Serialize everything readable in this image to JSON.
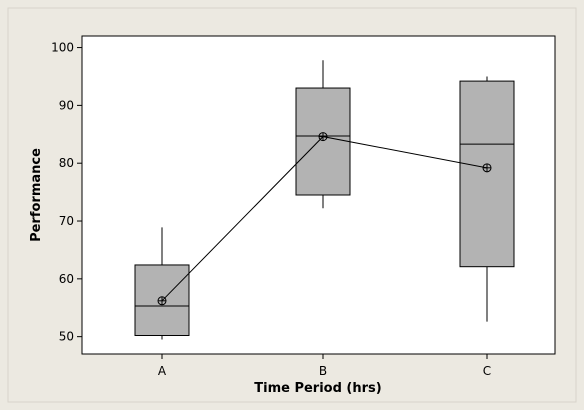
{
  "chart_data": {
    "type": "boxplot",
    "title": "",
    "xlabel": "Time Period (hrs)",
    "ylabel": "Performance",
    "categories": [
      "A",
      "B",
      "C"
    ],
    "ylim": [
      47,
      102
    ],
    "yticks": [
      50,
      60,
      70,
      80,
      90,
      100
    ],
    "grid": false,
    "legend": "none",
    "boxes": [
      {
        "name": "A",
        "whisker_low": 49.5,
        "q1": 50.2,
        "median": 55.3,
        "q3": 62.4,
        "whisker_high": 68.9,
        "mean": 56.2
      },
      {
        "name": "B",
        "whisker_low": 72.2,
        "q1": 74.5,
        "median": 84.7,
        "q3": 93.0,
        "whisker_high": 97.8,
        "mean": 84.6
      },
      {
        "name": "C",
        "whisker_low": 52.6,
        "q1": 62.1,
        "median": 83.3,
        "q3": 94.2,
        "whisker_high": 95.0,
        "mean": 79.2
      }
    ],
    "mean_connect_line": true,
    "colors": {
      "box_fill": "#b3b3b3",
      "background": "#ece9e1",
      "plot_background": "#ffffff"
    }
  }
}
